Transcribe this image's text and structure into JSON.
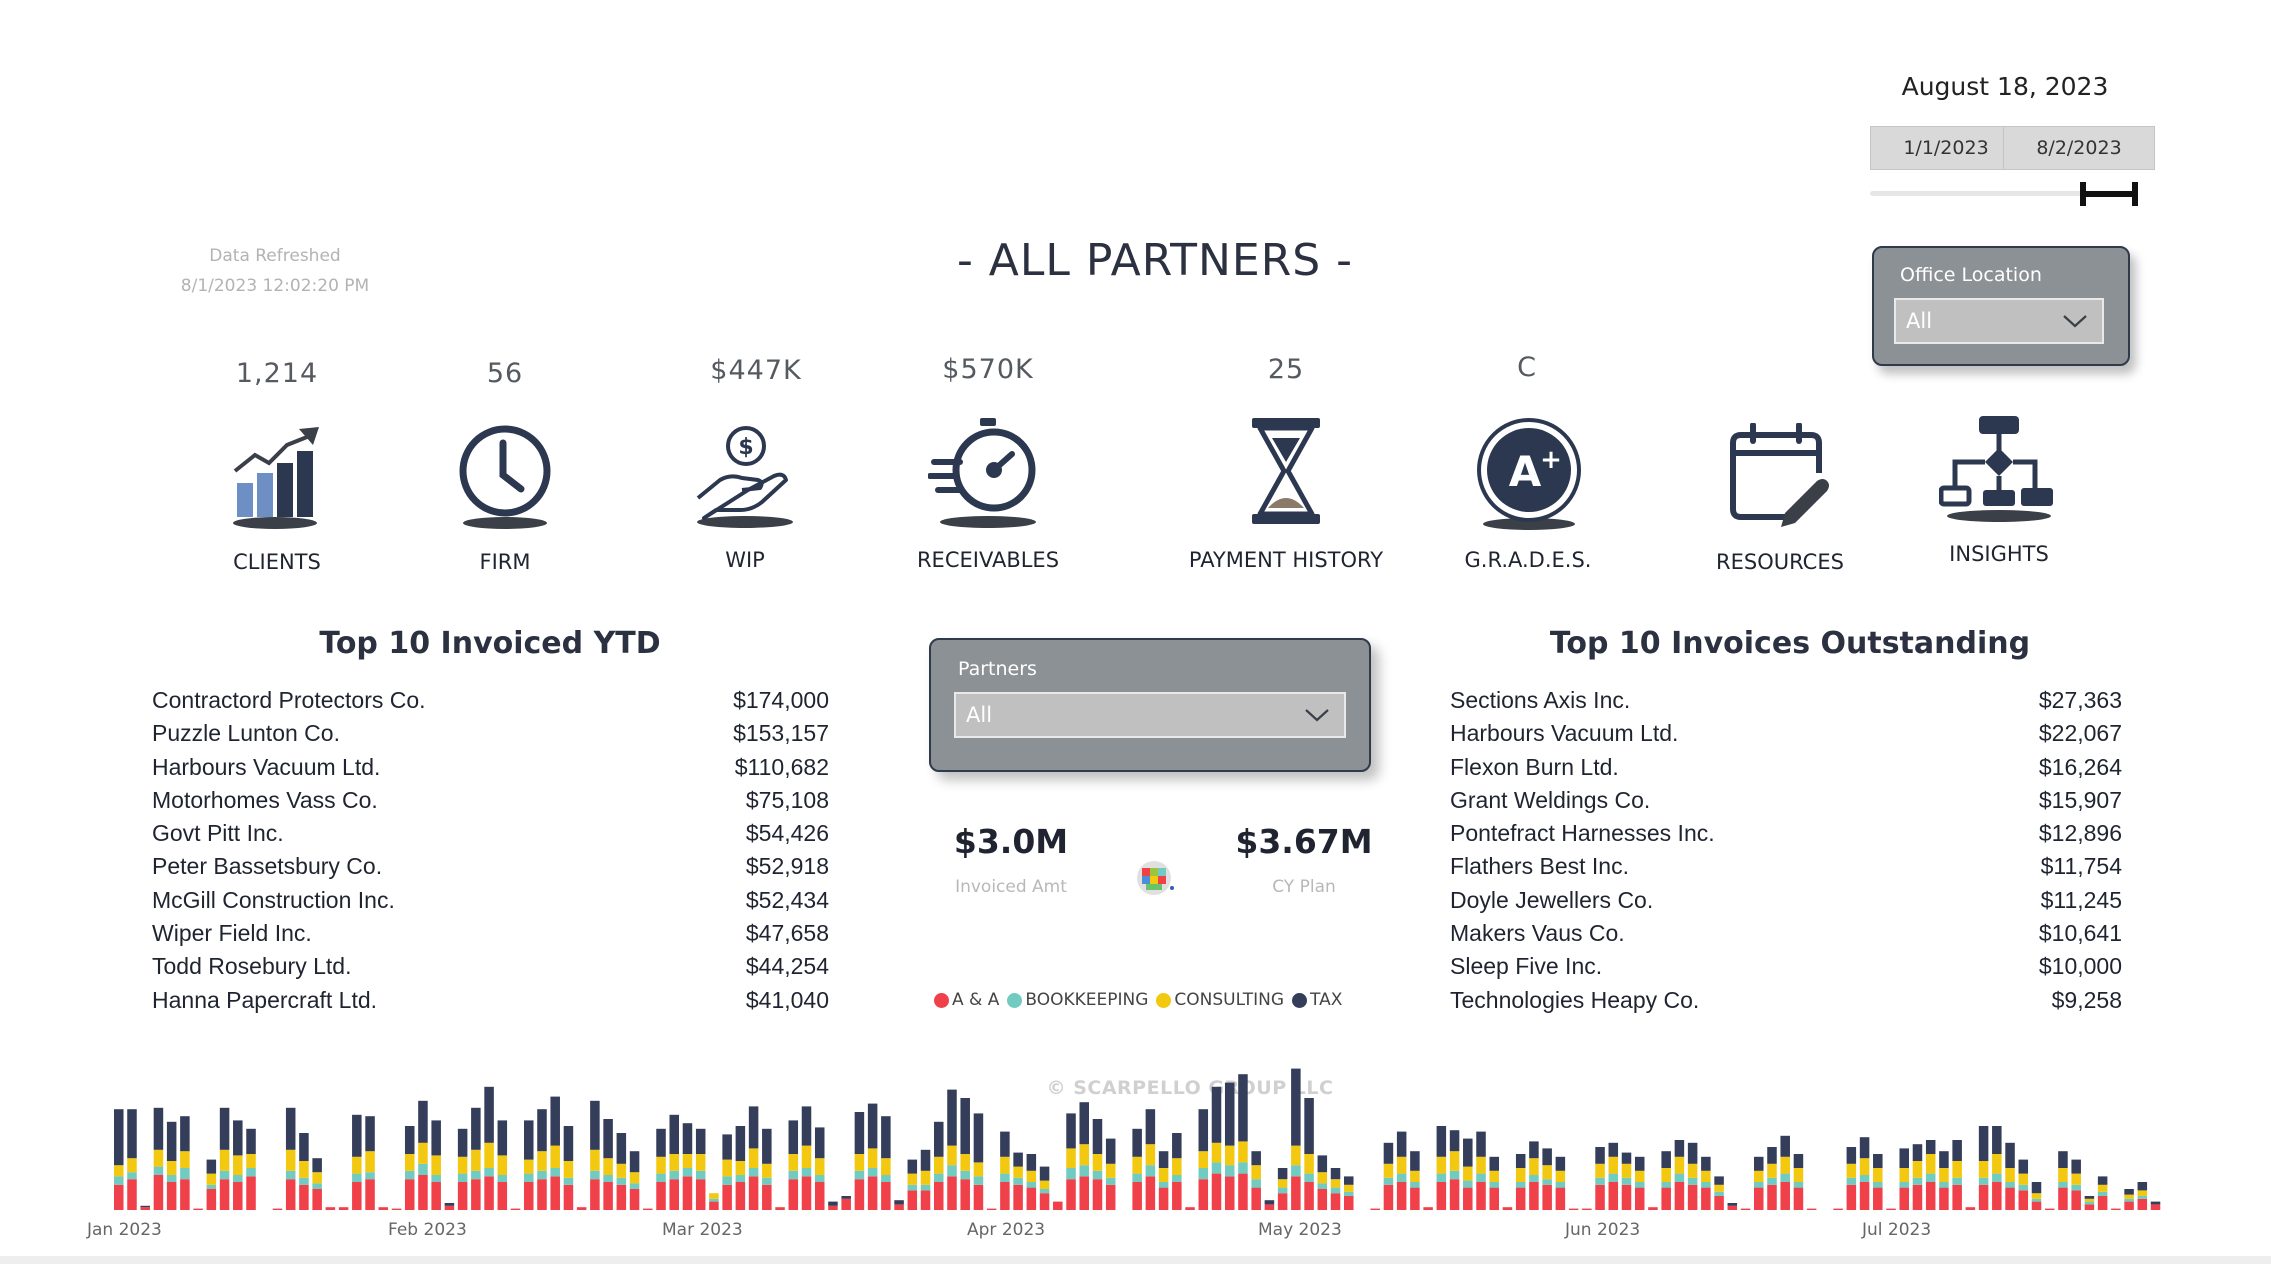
{
  "report_date": "August 18, 2023",
  "date_range": {
    "start": "1/1/2023",
    "end": "8/2/2023"
  },
  "data_refreshed": {
    "label": "Data Refreshed",
    "value": "8/1/2023 12:02:20 PM"
  },
  "page_title": "- ALL PARTNERS -",
  "office_filter": {
    "label": "Office Location",
    "value": "All"
  },
  "partners_filter": {
    "label": "Partners",
    "value": "All"
  },
  "kpis": {
    "clients": "1,214",
    "firm": "56",
    "wip": "$447K",
    "receivables": "$570K",
    "payment_history": "25",
    "grades": "C"
  },
  "nav": {
    "clients": "CLIENTS",
    "firm": "FIRM",
    "wip": "WIP",
    "receivables": "RECEIVABLES",
    "payment_history": "PAYMENT HISTORY",
    "grades": "G.R.A.D.E.S.",
    "resources": "RESOURCES",
    "insights": "INSIGHTS"
  },
  "invoiced_ytd": {
    "title": "Top 10 Invoiced YTD",
    "rows": [
      {
        "name": "Contractord Protectors Co.",
        "amount": "$174,000"
      },
      {
        "name": "Puzzle Lunton Co.",
        "amount": "$153,157"
      },
      {
        "name": "Harbours Vacuum Ltd.",
        "amount": "$110,682"
      },
      {
        "name": "Motorhomes Vass Co.",
        "amount": "$75,108"
      },
      {
        "name": "Govt Pitt Inc.",
        "amount": "$54,426"
      },
      {
        "name": "Peter Bassetsbury Co.",
        "amount": "$52,918"
      },
      {
        "name": "McGill Construction Inc.",
        "amount": "$52,434"
      },
      {
        "name": "Wiper Field Inc.",
        "amount": "$47,658"
      },
      {
        "name": "Todd Rosebury Ltd.",
        "amount": "$44,254"
      },
      {
        "name": "Hanna Papercraft Ltd.",
        "amount": "$41,040"
      }
    ]
  },
  "invoices_outstanding": {
    "title": "Top 10 Invoices Outstanding",
    "rows": [
      {
        "name": "Sections Axis Inc.",
        "amount": "$27,363"
      },
      {
        "name": "Harbours Vacuum Ltd.",
        "amount": "$22,067"
      },
      {
        "name": "Flexon Burn Ltd.",
        "amount": "$16,264"
      },
      {
        "name": "Grant Weldings Co.",
        "amount": "$15,907"
      },
      {
        "name": "Pontefract Harnesses Inc.",
        "amount": "$12,896"
      },
      {
        "name": "Flathers Best Inc.",
        "amount": "$11,754"
      },
      {
        "name": "Doyle Jewellers Co.",
        "amount": "$11,245"
      },
      {
        "name": "Makers Vaus Co.",
        "amount": "$10,641"
      },
      {
        "name": "Sleep Five Inc.",
        "amount": "$10,000"
      },
      {
        "name": "Technologies Heapy Co.",
        "amount": "$9,258"
      }
    ]
  },
  "summary": {
    "invoiced": {
      "value": "$3.0M",
      "label": "Invoiced Amt"
    },
    "plan": {
      "value": "$3.67M",
      "label": "CY Plan"
    }
  },
  "legend": [
    {
      "name": "A & A",
      "color": "#f0414a"
    },
    {
      "name": "BOOKKEEPING",
      "color": "#71cbc1"
    },
    {
      "name": "CONSULTING",
      "color": "#f2c811"
    },
    {
      "name": "TAX",
      "color": "#343e5a"
    }
  ],
  "copyright": "SCARPELLO GROUP LLC",
  "chart_data": {
    "type": "bar",
    "stacked": true,
    "x_tick_labels": [
      "Jan 2023",
      "Feb 2023",
      "Mar 2023",
      "Apr 2023",
      "May 2023",
      "Jun 2023",
      "Jul 2023"
    ],
    "series_names": [
      "A & A",
      "BOOKKEEPING",
      "CONSULTING",
      "TAX"
    ],
    "series_colors": [
      "#f0414a",
      "#71cbc1",
      "#f2c811",
      "#343e5a"
    ],
    "max_total": 100,
    "bars": [
      [
        18,
        6,
        8,
        40
      ],
      [
        22,
        5,
        10,
        35
      ],
      [
        2,
        0,
        0,
        1
      ],
      [
        25,
        6,
        12,
        30
      ],
      [
        20,
        5,
        10,
        28
      ],
      [
        22,
        8,
        12,
        25
      ],
      [
        1,
        0,
        0,
        0
      ],
      [
        15,
        3,
        8,
        10
      ],
      [
        22,
        6,
        15,
        30
      ],
      [
        20,
        5,
        14,
        25
      ],
      [
        24,
        6,
        10,
        18
      ],
      [
        0,
        0,
        0,
        0
      ],
      [
        1,
        0,
        0,
        0
      ],
      [
        22,
        6,
        15,
        30
      ],
      [
        18,
        5,
        12,
        20
      ],
      [
        15,
        4,
        8,
        10
      ],
      [
        2,
        0,
        0,
        0
      ],
      [
        2,
        0,
        0,
        0
      ],
      [
        20,
        6,
        12,
        30
      ],
      [
        22,
        5,
        15,
        25
      ],
      [
        2,
        0,
        0,
        0
      ],
      [
        1,
        0,
        0,
        0
      ],
      [
        22,
        6,
        12,
        20
      ],
      [
        25,
        8,
        15,
        30
      ],
      [
        20,
        5,
        14,
        25
      ],
      [
        3,
        0,
        0,
        2
      ],
      [
        20,
        6,
        12,
        20
      ],
      [
        22,
        6,
        15,
        30
      ],
      [
        24,
        6,
        18,
        40
      ],
      [
        20,
        5,
        14,
        25
      ],
      [
        1,
        0,
        0,
        0
      ],
      [
        20,
        6,
        10,
        28
      ],
      [
        22,
        6,
        14,
        30
      ],
      [
        24,
        6,
        16,
        35
      ],
      [
        18,
        5,
        12,
        25
      ],
      [
        2,
        0,
        0,
        0
      ],
      [
        22,
        6,
        15,
        35
      ],
      [
        20,
        5,
        12,
        28
      ],
      [
        18,
        5,
        10,
        22
      ],
      [
        15,
        4,
        8,
        15
      ],
      [
        1,
        0,
        0,
        0
      ],
      [
        20,
        6,
        12,
        20
      ],
      [
        22,
        6,
        12,
        28
      ],
      [
        24,
        6,
        10,
        22
      ],
      [
        22,
        6,
        12,
        18
      ],
      [
        6,
        2,
        4,
        0
      ],
      [
        18,
        6,
        12,
        18
      ],
      [
        20,
        5,
        10,
        25
      ],
      [
        24,
        6,
        14,
        30
      ],
      [
        18,
        5,
        10,
        25
      ],
      [
        2,
        0,
        0,
        0
      ],
      [
        22,
        6,
        12,
        24
      ],
      [
        24,
        6,
        16,
        28
      ],
      [
        20,
        5,
        12,
        22
      ],
      [
        3,
        0,
        0,
        3
      ],
      [
        8,
        0,
        0,
        2
      ],
      [
        22,
        6,
        12,
        30
      ],
      [
        24,
        6,
        14,
        32
      ],
      [
        20,
        5,
        12,
        30
      ],
      [
        4,
        0,
        0,
        3
      ],
      [
        14,
        4,
        8,
        10
      ],
      [
        14,
        4,
        10,
        15
      ],
      [
        20,
        6,
        12,
        25
      ],
      [
        24,
        8,
        14,
        40
      ],
      [
        22,
        6,
        12,
        40
      ],
      [
        18,
        6,
        10,
        35
      ],
      [
        1,
        0,
        0,
        0
      ],
      [
        20,
        6,
        12,
        18
      ],
      [
        18,
        5,
        8,
        10
      ],
      [
        16,
        4,
        8,
        12
      ],
      [
        12,
        3,
        6,
        10
      ],
      [
        6,
        0,
        0,
        0
      ],
      [
        22,
        8,
        14,
        25
      ],
      [
        24,
        8,
        15,
        30
      ],
      [
        22,
        6,
        12,
        25
      ],
      [
        18,
        5,
        10,
        18
      ],
      [
        0,
        0,
        0,
        0
      ],
      [
        20,
        6,
        12,
        20
      ],
      [
        24,
        8,
        15,
        25
      ],
      [
        16,
        4,
        10,
        12
      ],
      [
        20,
        5,
        12,
        18
      ],
      [
        2,
        0,
        0,
        0
      ],
      [
        22,
        8,
        12,
        30
      ],
      [
        26,
        8,
        14,
        40
      ],
      [
        24,
        8,
        14,
        45
      ],
      [
        26,
        8,
        15,
        48
      ],
      [
        16,
        6,
        10,
        10
      ],
      [
        4,
        0,
        0,
        3
      ],
      [
        12,
        4,
        6,
        8
      ],
      [
        24,
        8,
        14,
        55
      ],
      [
        20,
        6,
        14,
        40
      ],
      [
        15,
        4,
        8,
        12
      ],
      [
        12,
        4,
        6,
        8
      ],
      [
        10,
        3,
        5,
        6
      ],
      [
        0,
        0,
        0,
        0
      ],
      [
        1,
        0,
        0,
        0
      ],
      [
        18,
        5,
        10,
        15
      ],
      [
        20,
        6,
        12,
        18
      ],
      [
        16,
        4,
        8,
        14
      ],
      [
        2,
        0,
        0,
        0
      ],
      [
        20,
        6,
        12,
        22
      ],
      [
        22,
        6,
        14,
        15
      ],
      [
        16,
        5,
        10,
        20
      ],
      [
        20,
        6,
        12,
        18
      ],
      [
        16,
        4,
        8,
        10
      ],
      [
        2,
        0,
        0,
        0
      ],
      [
        16,
        4,
        10,
        10
      ],
      [
        20,
        5,
        12,
        12
      ],
      [
        18,
        4,
        10,
        12
      ],
      [
        16,
        4,
        8,
        10
      ],
      [
        1,
        0,
        0,
        0
      ],
      [
        1,
        0,
        0,
        0
      ],
      [
        18,
        5,
        10,
        12
      ],
      [
        20,
        6,
        12,
        10
      ],
      [
        18,
        5,
        10,
        8
      ],
      [
        16,
        4,
        8,
        10
      ],
      [
        2,
        0,
        0,
        0
      ],
      [
        16,
        4,
        10,
        12
      ],
      [
        20,
        6,
        12,
        12
      ],
      [
        18,
        5,
        10,
        15
      ],
      [
        16,
        4,
        8,
        10
      ],
      [
        10,
        3,
        5,
        6
      ],
      [
        3,
        0,
        0,
        2
      ],
      [
        1,
        0,
        0,
        0
      ],
      [
        16,
        4,
        8,
        10
      ],
      [
        18,
        5,
        10,
        12
      ],
      [
        20,
        6,
        12,
        15
      ],
      [
        16,
        4,
        10,
        10
      ],
      [
        1,
        0,
        0,
        0
      ],
      [
        0,
        0,
        0,
        0
      ],
      [
        1,
        0,
        0,
        0
      ],
      [
        18,
        5,
        10,
        12
      ],
      [
        20,
        5,
        12,
        15
      ],
      [
        16,
        4,
        10,
        10
      ],
      [
        1,
        0,
        0,
        0
      ],
      [
        16,
        4,
        10,
        14
      ],
      [
        18,
        5,
        12,
        12
      ],
      [
        20,
        6,
        14,
        10
      ],
      [
        16,
        4,
        10,
        12
      ],
      [
        18,
        5,
        12,
        15
      ],
      [
        2,
        0,
        0,
        0
      ],
      [
        18,
        5,
        12,
        25
      ],
      [
        20,
        6,
        14,
        20
      ],
      [
        16,
        4,
        10,
        18
      ],
      [
        14,
        4,
        8,
        10
      ],
      [
        6,
        2,
        4,
        8
      ],
      [
        1,
        0,
        0,
        0
      ],
      [
        16,
        4,
        10,
        12
      ],
      [
        14,
        4,
        8,
        10
      ],
      [
        4,
        2,
        2,
        2
      ],
      [
        10,
        3,
        5,
        6
      ],
      [
        1,
        0,
        0,
        0
      ],
      [
        6,
        2,
        3,
        4
      ],
      [
        8,
        2,
        4,
        6
      ],
      [
        4,
        0,
        0,
        2
      ]
    ]
  }
}
